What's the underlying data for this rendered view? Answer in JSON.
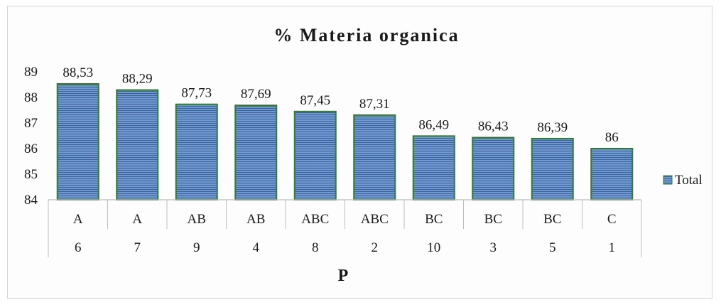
{
  "chart_data": {
    "type": "bar",
    "title": "% Materia organica",
    "xlabel": "P",
    "ylabel": "",
    "ylim": [
      84,
      89
    ],
    "yticks": [
      84,
      85,
      86,
      87,
      88,
      89
    ],
    "categories": [
      {
        "group": "A",
        "label": "6"
      },
      {
        "group": "A",
        "label": "7"
      },
      {
        "group": "AB",
        "label": "9"
      },
      {
        "group": "AB",
        "label": "4"
      },
      {
        "group": "ABC",
        "label": "8"
      },
      {
        "group": "ABC",
        "label": "2"
      },
      {
        "group": "BC",
        "label": "10"
      },
      {
        "group": "BC",
        "label": "3"
      },
      {
        "group": "BC",
        "label": "5"
      },
      {
        "group": "C",
        "label": "1"
      }
    ],
    "series": [
      {
        "name": "Total",
        "values": [
          88.53,
          88.29,
          87.73,
          87.69,
          87.45,
          87.31,
          86.49,
          86.43,
          86.39,
          86
        ],
        "data_labels": [
          "88,53",
          "88,29",
          "87,73",
          "87,69",
          "87,45",
          "87,31",
          "86,49",
          "86,43",
          "86,39",
          "86"
        ],
        "color": "#5b87c5",
        "border_color": "#2e7d32"
      }
    ],
    "legend_position": "right",
    "grid": false
  }
}
